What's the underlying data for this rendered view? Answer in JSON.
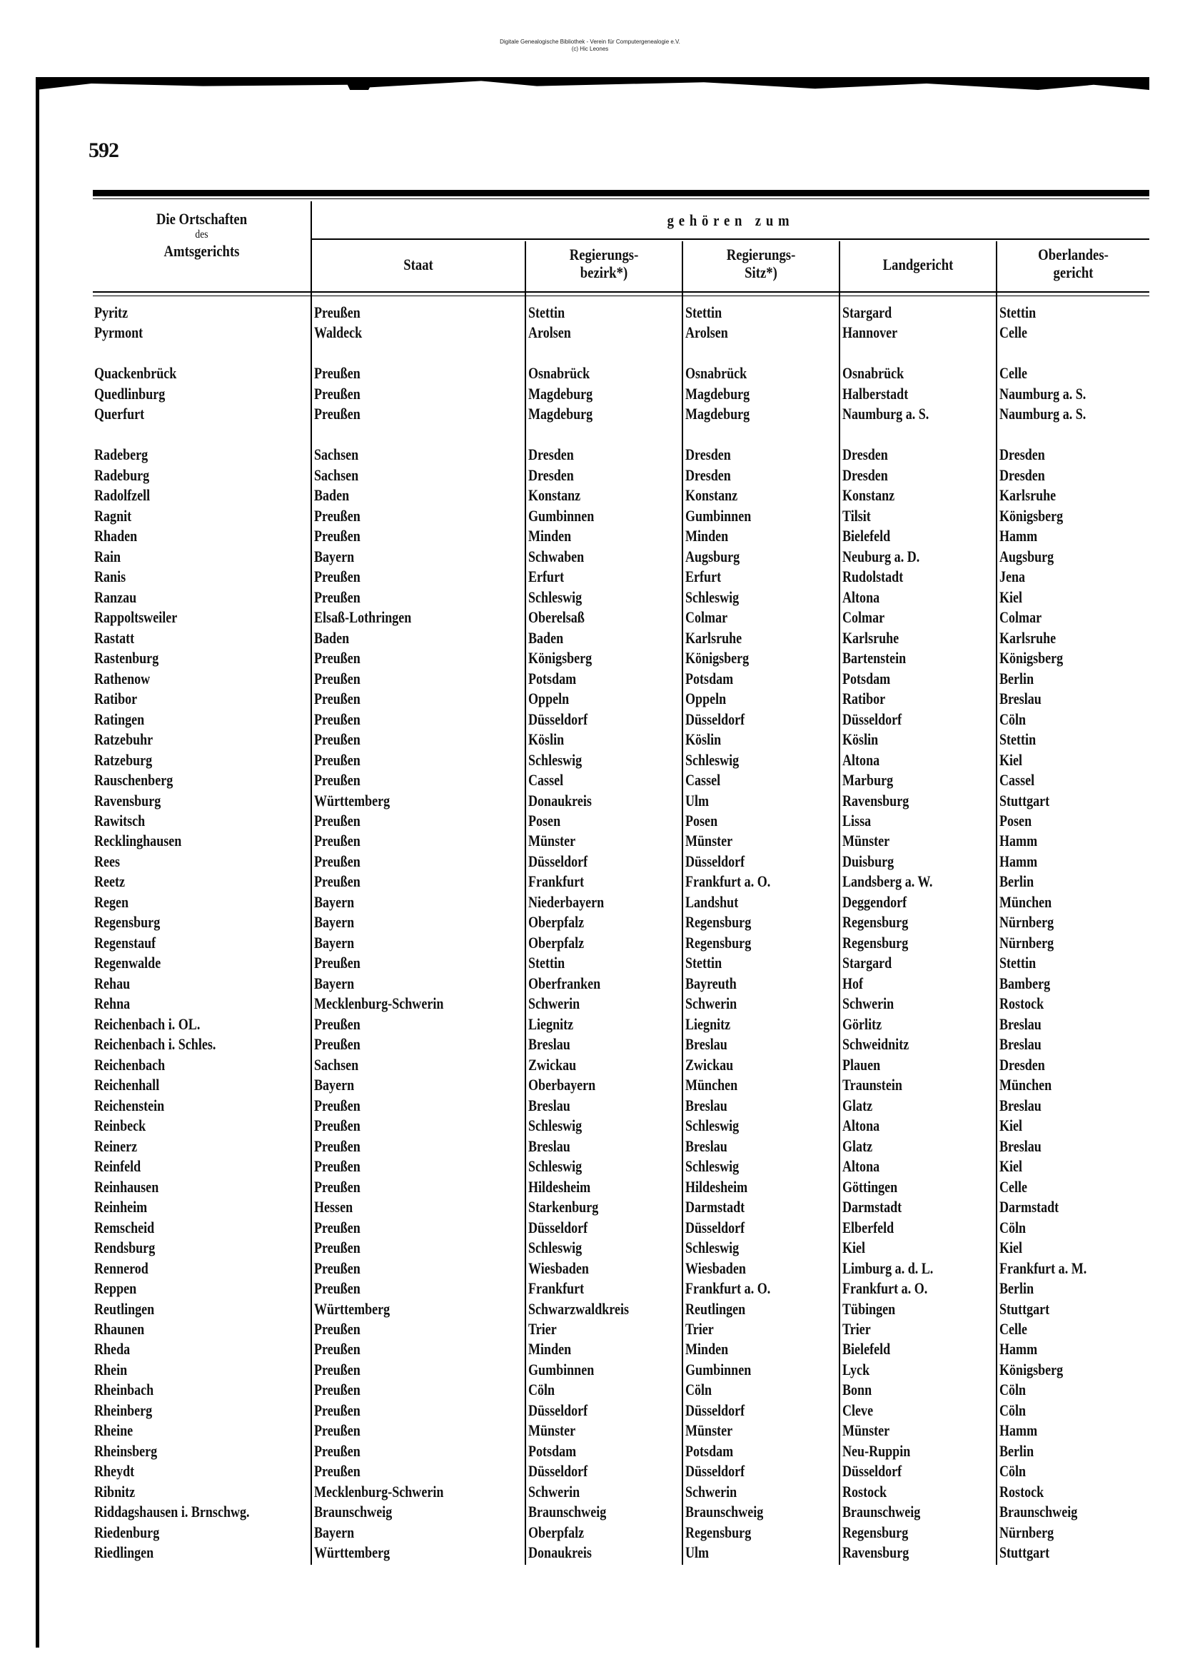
{
  "watermark": {
    "line1": "Digitale Genealogische Bibliothek - Verein für Computergenealogie e.V.",
    "line2": "(c) Hic Leones"
  },
  "page_number": "592",
  "header": {
    "col1_line1": "Die Ortschaften",
    "col1_line2": "des",
    "col1_line3": "Amtsgerichts",
    "group": "gehören zum",
    "staat": "Staat",
    "bezirk_line1": "Regierungs-",
    "bezirk_line2": "bezirk*)",
    "sitz_line1": "Regierungs-",
    "sitz_line2": "Sitz*)",
    "landgericht": "Landgericht",
    "olg_line1": "Oberlandes-",
    "olg_line2": "gericht"
  },
  "rows": [
    [
      "Pyritz",
      "Preußen",
      "Stettin",
      "Stettin",
      "Stargard",
      "Stettin"
    ],
    [
      "Pyrmont",
      "Waldeck",
      "Arolsen",
      "Arolsen",
      "Hannover",
      "Celle"
    ],
    [],
    [
      "Quackenbrück",
      "Preußen",
      "Osnabrück",
      "Osnabrück",
      "Osnabrück",
      "Celle"
    ],
    [
      "Quedlinburg",
      "Preußen",
      "Magdeburg",
      "Magdeburg",
      "Halberstadt",
      "Naumburg a. S."
    ],
    [
      "Querfurt",
      "Preußen",
      "Magdeburg",
      "Magdeburg",
      "Naumburg a. S.",
      "Naumburg a. S."
    ],
    [],
    [
      "Radeberg",
      "Sachsen",
      "Dresden",
      "Dresden",
      "Dresden",
      "Dresden"
    ],
    [
      "Radeburg",
      "Sachsen",
      "Dresden",
      "Dresden",
      "Dresden",
      "Dresden"
    ],
    [
      "Radolfzell",
      "Baden",
      "Konstanz",
      "Konstanz",
      "Konstanz",
      "Karlsruhe"
    ],
    [
      "Ragnit",
      "Preußen",
      "Gumbinnen",
      "Gumbinnen",
      "Tilsit",
      "Königsberg"
    ],
    [
      "Rhaden",
      "Preußen",
      "Minden",
      "Minden",
      "Bielefeld",
      "Hamm"
    ],
    [
      "Rain",
      "Bayern",
      "Schwaben",
      "Augsburg",
      "Neuburg a. D.",
      "Augsburg"
    ],
    [
      "Ranis",
      "Preußen",
      "Erfurt",
      "Erfurt",
      "Rudolstadt",
      "Jena"
    ],
    [
      "Ranzau",
      "Preußen",
      "Schleswig",
      "Schleswig",
      "Altona",
      "Kiel"
    ],
    [
      "Rappoltsweiler",
      "Elsaß-Lothringen",
      "Oberelsaß",
      "Colmar",
      "Colmar",
      "Colmar"
    ],
    [
      "Rastatt",
      "Baden",
      "Baden",
      "Karlsruhe",
      "Karlsruhe",
      "Karlsruhe"
    ],
    [
      "Rastenburg",
      "Preußen",
      "Königsberg",
      "Königsberg",
      "Bartenstein",
      "Königsberg"
    ],
    [
      "Rathenow",
      "Preußen",
      "Potsdam",
      "Potsdam",
      "Potsdam",
      "Berlin"
    ],
    [
      "Ratibor",
      "Preußen",
      "Oppeln",
      "Oppeln",
      "Ratibor",
      "Breslau"
    ],
    [
      "Ratingen",
      "Preußen",
      "Düsseldorf",
      "Düsseldorf",
      "Düsseldorf",
      "Cöln"
    ],
    [
      "Ratzebuhr",
      "Preußen",
      "Köslin",
      "Köslin",
      "Köslin",
      "Stettin"
    ],
    [
      "Ratzeburg",
      "Preußen",
      "Schleswig",
      "Schleswig",
      "Altona",
      "Kiel"
    ],
    [
      "Rauschenberg",
      "Preußen",
      "Cassel",
      "Cassel",
      "Marburg",
      "Cassel"
    ],
    [
      "Ravensburg",
      "Württemberg",
      "Donaukreis",
      "Ulm",
      "Ravensburg",
      "Stuttgart"
    ],
    [
      "Rawitsch",
      "Preußen",
      "Posen",
      "Posen",
      "Lissa",
      "Posen"
    ],
    [
      "Recklinghausen",
      "Preußen",
      "Münster",
      "Münster",
      "Münster",
      "Hamm"
    ],
    [
      "Rees",
      "Preußen",
      "Düsseldorf",
      "Düsseldorf",
      "Duisburg",
      "Hamm"
    ],
    [
      "Reetz",
      "Preußen",
      "Frankfurt",
      "Frankfurt a. O.",
      "Landsberg a. W.",
      "Berlin"
    ],
    [
      "Regen",
      "Bayern",
      "Niederbayern",
      "Landshut",
      "Deggendorf",
      "München"
    ],
    [
      "Regensburg",
      "Bayern",
      "Oberpfalz",
      "Regensburg",
      "Regensburg",
      "Nürnberg"
    ],
    [
      "Regenstauf",
      "Bayern",
      "Oberpfalz",
      "Regensburg",
      "Regensburg",
      "Nürnberg"
    ],
    [
      "Regenwalde",
      "Preußen",
      "Stettin",
      "Stettin",
      "Stargard",
      "Stettin"
    ],
    [
      "Rehau",
      "Bayern",
      "Oberfranken",
      "Bayreuth",
      "Hof",
      "Bamberg"
    ],
    [
      "Rehna",
      "Mecklenburg-Schwerin",
      "Schwerin",
      "Schwerin",
      "Schwerin",
      "Rostock"
    ],
    [
      "Reichenbach i. OL.",
      "Preußen",
      "Liegnitz",
      "Liegnitz",
      "Görlitz",
      "Breslau"
    ],
    [
      "Reichenbach i. Schles.",
      "Preußen",
      "Breslau",
      "Breslau",
      "Schweidnitz",
      "Breslau"
    ],
    [
      "Reichenbach",
      "Sachsen",
      "Zwickau",
      "Zwickau",
      "Plauen",
      "Dresden"
    ],
    [
      "Reichenhall",
      "Bayern",
      "Oberbayern",
      "München",
      "Traunstein",
      "München"
    ],
    [
      "Reichenstein",
      "Preußen",
      "Breslau",
      "Breslau",
      "Glatz",
      "Breslau"
    ],
    [
      "Reinbeck",
      "Preußen",
      "Schleswig",
      "Schleswig",
      "Altona",
      "Kiel"
    ],
    [
      "Reinerz",
      "Preußen",
      "Breslau",
      "Breslau",
      "Glatz",
      "Breslau"
    ],
    [
      "Reinfeld",
      "Preußen",
      "Schleswig",
      "Schleswig",
      "Altona",
      "Kiel"
    ],
    [
      "Reinhausen",
      "Preußen",
      "Hildesheim",
      "Hildesheim",
      "Göttingen",
      "Celle"
    ],
    [
      "Reinheim",
      "Hessen",
      "Starkenburg",
      "Darmstadt",
      "Darmstadt",
      "Darmstadt"
    ],
    [
      "Remscheid",
      "Preußen",
      "Düsseldorf",
      "Düsseldorf",
      "Elberfeld",
      "Cöln"
    ],
    [
      "Rendsburg",
      "Preußen",
      "Schleswig",
      "Schleswig",
      "Kiel",
      "Kiel"
    ],
    [
      "Rennerod",
      "Preußen",
      "Wiesbaden",
      "Wiesbaden",
      "Limburg a. d. L.",
      "Frankfurt a. M."
    ],
    [
      "Reppen",
      "Preußen",
      "Frankfurt",
      "Frankfurt a. O.",
      "Frankfurt a. O.",
      "Berlin"
    ],
    [
      "Reutlingen",
      "Württemberg",
      "Schwarzwaldkreis",
      "Reutlingen",
      "Tübingen",
      "Stuttgart"
    ],
    [
      "Rhaunen",
      "Preußen",
      "Trier",
      "Trier",
      "Trier",
      "Celle"
    ],
    [
      "Rheda",
      "Preußen",
      "Minden",
      "Minden",
      "Bielefeld",
      "Hamm"
    ],
    [
      "Rhein",
      "Preußen",
      "Gumbinnen",
      "Gumbinnen",
      "Lyck",
      "Königsberg"
    ],
    [
      "Rheinbach",
      "Preußen",
      "Cöln",
      "Cöln",
      "Bonn",
      "Cöln"
    ],
    [
      "Rheinberg",
      "Preußen",
      "Düsseldorf",
      "Düsseldorf",
      "Cleve",
      "Cöln"
    ],
    [
      "Rheine",
      "Preußen",
      "Münster",
      "Münster",
      "Münster",
      "Hamm"
    ],
    [
      "Rheinsberg",
      "Preußen",
      "Potsdam",
      "Potsdam",
      "Neu-Ruppin",
      "Berlin"
    ],
    [
      "Rheydt",
      "Preußen",
      "Düsseldorf",
      "Düsseldorf",
      "Düsseldorf",
      "Cöln"
    ],
    [
      "Ribnitz",
      "Mecklenburg-Schwerin",
      "Schwerin",
      "Schwerin",
      "Rostock",
      "Rostock"
    ],
    [
      "Riddagshausen i. Brnschwg.",
      "Braunschweig",
      "Braunschweig",
      "Braunschweig",
      "Braunschweig",
      "Braunschweig"
    ],
    [
      "Riedenburg",
      "Bayern",
      "Oberpfalz",
      "Regensburg",
      "Regensburg",
      "Nürnberg"
    ],
    [
      "Riedlingen",
      "Württemberg",
      "Donaukreis",
      "Ulm",
      "Ravensburg",
      "Stuttgart"
    ]
  ]
}
